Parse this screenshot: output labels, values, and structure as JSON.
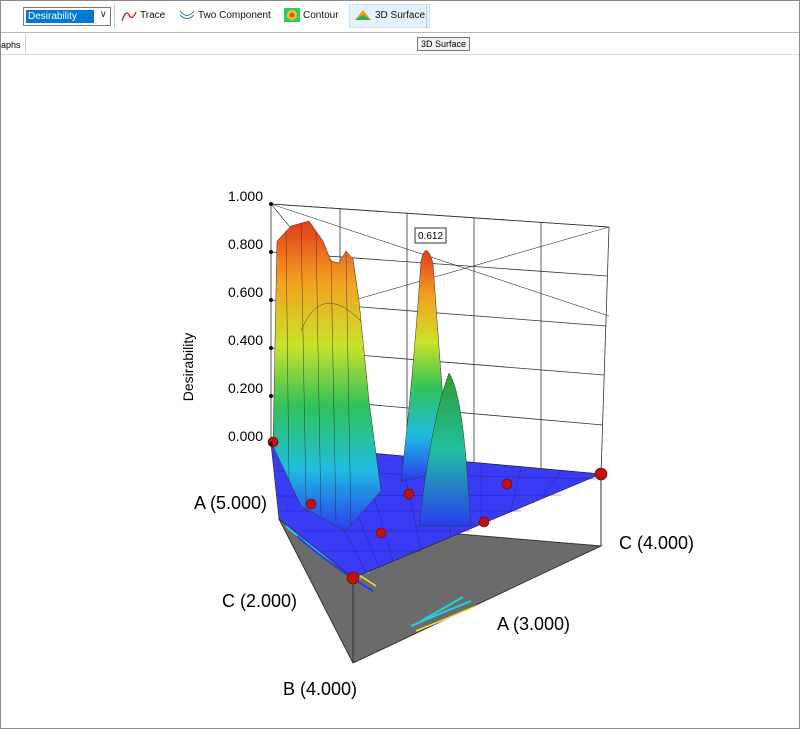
{
  "toolbar": {
    "dropdown": "Desirability",
    "buttons": [
      "Trace",
      "Two Component",
      "Contour",
      "3D Surface"
    ]
  },
  "tab": "aphs",
  "tooltip": "3D Surface",
  "plot": {
    "z_axis_title": "Desirability",
    "z_tick_labels": [
      "1.000",
      "0.800",
      "0.600",
      "0.400",
      "0.200",
      "0.000"
    ],
    "peak_label": "0.612",
    "corner_labels": [
      "A (5.000)",
      "C (4.000)",
      "C (2.000)",
      "A (3.000)",
      "B (4.000)"
    ]
  }
}
